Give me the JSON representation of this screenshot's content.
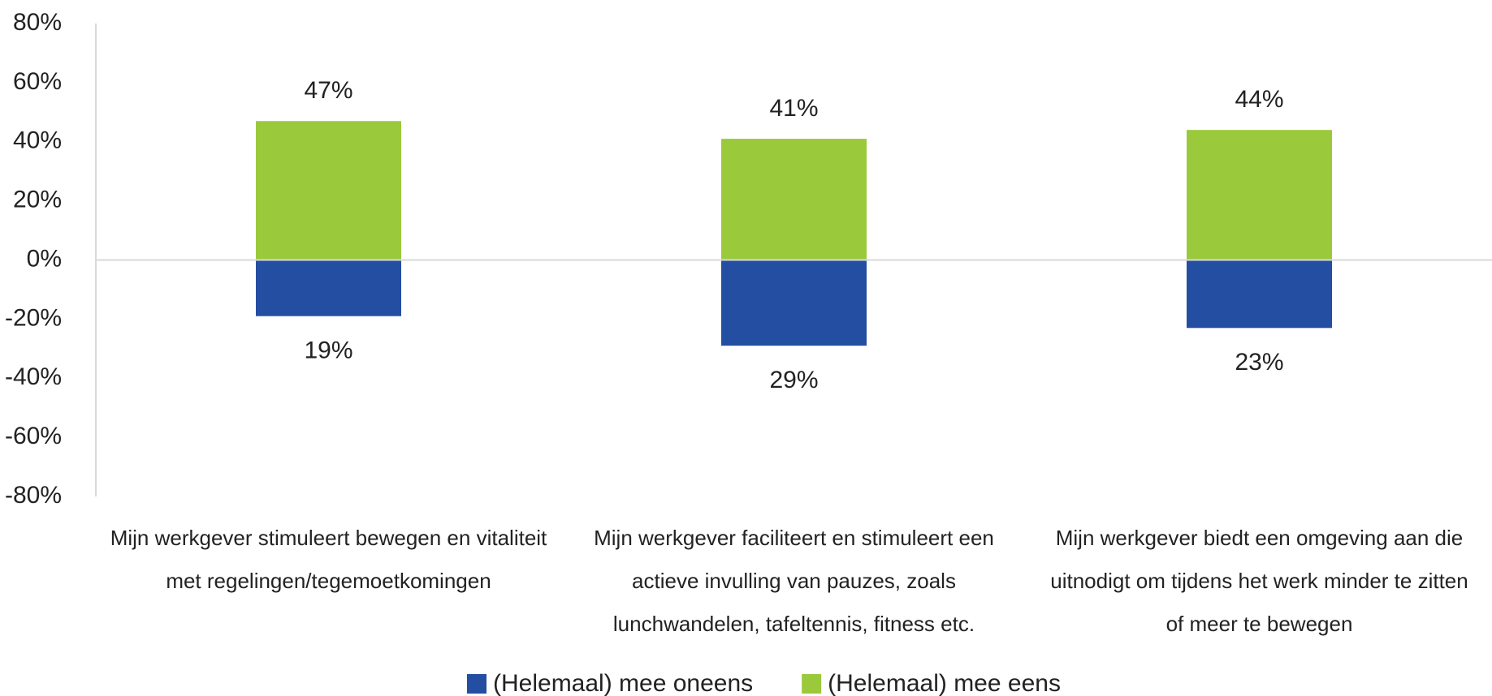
{
  "chart_data": {
    "type": "bar",
    "categories": [
      [
        "Mijn werkgever stimuleert bewegen en vitaliteit",
        "met regelingen/tegemoetkomingen"
      ],
      [
        "Mijn werkgever faciliteert en stimuleert een",
        "actieve invulling van pauzes, zoals",
        "lunchwandelen, tafeltennis, fitness etc."
      ],
      [
        "Mijn werkgever biedt een omgeving aan die",
        "uitnodigt om tijdens het werk minder te zitten",
        "of meer te bewegen"
      ]
    ],
    "series": [
      {
        "name": "(Helemaal) mee oneens",
        "color": "#234ea2",
        "values": [
          -19,
          -29,
          -23
        ],
        "value_labels": [
          "19%",
          "29%",
          "23%"
        ]
      },
      {
        "name": "(Helemaal) mee eens",
        "color": "#9bc93c",
        "values": [
          47,
          41,
          44
        ],
        "value_labels": [
          "47%",
          "41%",
          "44%"
        ]
      }
    ],
    "ylim": [
      -80,
      80
    ],
    "yticks": [
      {
        "value": -80,
        "label": "-80%"
      },
      {
        "value": -60,
        "label": "-60%"
      },
      {
        "value": -40,
        "label": "-40%"
      },
      {
        "value": -20,
        "label": "-20%"
      },
      {
        "value": 0,
        "label": "0%"
      },
      {
        "value": 20,
        "label": "20%"
      },
      {
        "value": 40,
        "label": "40%"
      },
      {
        "value": 60,
        "label": "60%"
      },
      {
        "value": 80,
        "label": "80%"
      }
    ],
    "legend": "bottom"
  }
}
